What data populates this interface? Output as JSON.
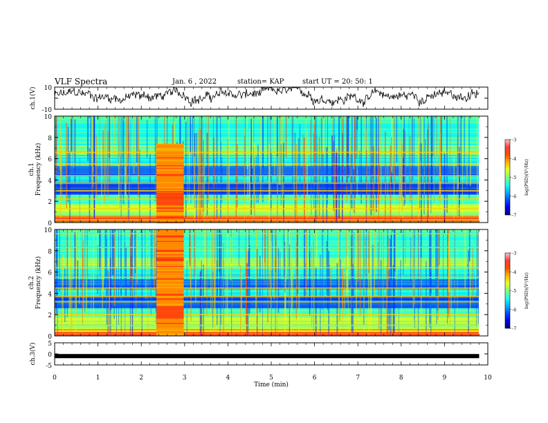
{
  "header": {
    "title": "VLF Spectra",
    "date": "Jan. 6 , 2022",
    "station": "station= KAP",
    "start": "start UT = 20: 50: 1"
  },
  "chart_data": [
    {
      "type": "line",
      "panel": "ch1-waveform",
      "ylabel": "ch.1(V)",
      "ylim": [
        -10,
        10
      ],
      "yticks": [
        "10",
        "-10"
      ],
      "xlim": [
        0,
        9.8
      ],
      "note_series": "noisy waveform oscillating between about -5 and 9 V"
    },
    {
      "type": "heatmap",
      "panel": "ch1-spectrogram",
      "ylabel": "ch.1 Frequency (kHz)",
      "ylim": [
        0,
        10
      ],
      "yticks": [
        "0",
        "2",
        "4",
        "6",
        "8",
        "10"
      ],
      "xlim": [
        0,
        9.8
      ],
      "colorbar": {
        "label": "log(PSD)(V²/Hz)",
        "ticks": [
          "-3",
          "-4",
          "-5",
          "-6",
          "-7"
        ],
        "range": [
          -7,
          -3
        ]
      },
      "burst": {
        "start_min": 2.35,
        "end_min": 2.98
      }
    },
    {
      "type": "heatmap",
      "panel": "ch2-spectrogram",
      "ylabel": "ch.2 Frequency (kHz)",
      "ylim": [
        0,
        10
      ],
      "yticks": [
        "0",
        "2",
        "4",
        "6",
        "8",
        "10"
      ],
      "xlim": [
        0,
        9.8
      ],
      "colorbar": {
        "label": "log(PSD)(V²/Hz)",
        "ticks": [
          "-3",
          "-4",
          "-5",
          "-6",
          "-7"
        ],
        "range": [
          -7,
          -3
        ]
      },
      "burst": {
        "start_min": 2.35,
        "end_min": 2.98
      }
    },
    {
      "type": "line",
      "panel": "ch3-waveform",
      "ylabel": "ch.3(V)",
      "ylim": [
        -5,
        5
      ],
      "yticks": [
        "5",
        "0",
        "-5"
      ],
      "xlabel": "Time (min)",
      "xlim": [
        0,
        10
      ],
      "xticks": [
        "0",
        "1",
        "2",
        "3",
        "4",
        "5",
        "6",
        "7",
        "8",
        "9",
        "10"
      ],
      "data_xlim": [
        0,
        9.8
      ],
      "level": -1.0
    }
  ]
}
